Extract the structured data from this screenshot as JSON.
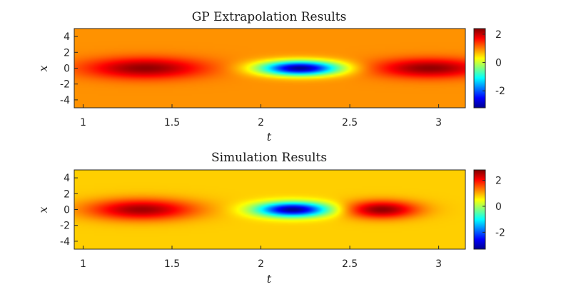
{
  "colors": {
    "background": "#ffffff",
    "axis": "#262626",
    "colormap": "jet"
  },
  "chart_data": [
    {
      "type": "heatmap",
      "title": "GP Extrapolation Results",
      "xlabel": "t",
      "ylabel": "x",
      "xlim": [
        0.95,
        3.15
      ],
      "ylim": [
        -5,
        5
      ],
      "xticks": [
        1,
        1.5,
        2,
        2.5,
        3
      ],
      "xtick_labels": [
        "1",
        "1.5",
        "2",
        "2.5",
        "3"
      ],
      "yticks": [
        4,
        2,
        0,
        -2,
        -4
      ],
      "ytick_labels": [
        "4",
        "2",
        "0",
        "-2",
        "-4"
      ],
      "clim": [
        -3.2,
        2.4
      ],
      "colorbar_ticks": [
        2,
        0,
        -2
      ],
      "colorbar_tick_labels": [
        "2",
        "0",
        "-2"
      ],
      "features": [
        {
          "t_center": 1.35,
          "t_width": 0.33,
          "x_width": 1.3,
          "amplitude": 2.3
        },
        {
          "t_center": 2.22,
          "t_width": 0.22,
          "x_width": 0.9,
          "amplitude": -3.1
        },
        {
          "t_center": 2.95,
          "t_width": 0.3,
          "x_width": 1.2,
          "amplitude": 2.3
        }
      ],
      "background_value": 0.9
    },
    {
      "type": "heatmap",
      "title": "Simulation Results",
      "xlabel": "t",
      "ylabel": "x",
      "xlim": [
        0.95,
        3.15
      ],
      "ylim": [
        -5,
        5
      ],
      "xticks": [
        1,
        1.5,
        2,
        2.5,
        3
      ],
      "xtick_labels": [
        "1",
        "1.5",
        "2",
        "2.5",
        "3"
      ],
      "yticks": [
        4,
        2,
        0,
        -2,
        -4
      ],
      "ytick_labels": [
        "4",
        "2",
        "0",
        "-2",
        "-4"
      ],
      "clim": [
        -3.3,
        2.8
      ],
      "colorbar_ticks": [
        2,
        0,
        -2
      ],
      "colorbar_tick_labels": [
        "2",
        "0",
        "-2"
      ],
      "features": [
        {
          "t_center": 1.33,
          "t_width": 0.3,
          "x_width": 1.3,
          "amplitude": 2.6
        },
        {
          "t_center": 2.18,
          "t_width": 0.2,
          "x_width": 0.9,
          "amplitude": -3.2
        },
        {
          "t_center": 2.68,
          "t_width": 0.2,
          "x_width": 1.1,
          "amplitude": 2.7
        }
      ],
      "background_value": 0.8
    }
  ]
}
